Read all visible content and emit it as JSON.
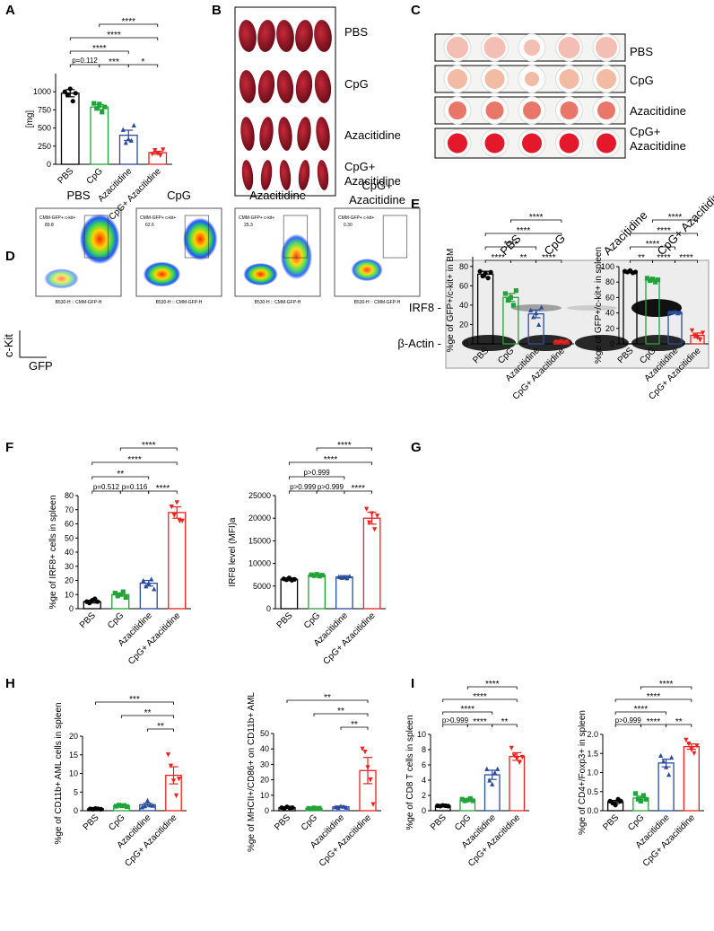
{
  "panel_labels": [
    "A",
    "B",
    "C",
    "D",
    "E",
    "F",
    "G",
    "H",
    "I"
  ],
  "spleen_photo": {
    "labels": [
      [
        "PBS"
      ],
      [
        "CpG"
      ],
      [
        "Azacitidine"
      ],
      [
        "CpG+",
        "Azacitidine"
      ]
    ]
  },
  "bone_marrow_photo": {
    "labels": [
      [
        "PBS"
      ],
      [
        "CpG"
      ],
      [
        "Azacitidine"
      ],
      [
        "CpG+",
        "Azacitidine"
      ]
    ]
  },
  "flow": {
    "titles": [
      [
        "PBS"
      ],
      [
        "CpG"
      ],
      [
        "Azacitidine"
      ],
      [
        "CpG+",
        "Azacitidine"
      ]
    ],
    "gate_label": "CMM-GFP+ c-kit+",
    "gate_values": [
      "89.8",
      "62.6",
      "25.3",
      "0.30"
    ],
    "x_channel": "B530-H :: CMM-GFP-H",
    "y_axis_label": "c-Kit",
    "x_axis_label": "GFP"
  },
  "western_blot": {
    "lanes": [
      "PBS",
      "CpG",
      "Azacitidine",
      "CpG+ Azacitidine"
    ],
    "rows": [
      "IRF8 -",
      "β-Actin -"
    ]
  },
  "chart_data": [
    {
      "type": "bar",
      "y_label": "[mg]",
      "categories": [
        "PBS",
        "CpG",
        "Azacitidine",
        "CpG+ Azacitidine"
      ],
      "colors": [
        "#000000",
        "#22a33a",
        "#2b4c9b",
        "#e8231f"
      ],
      "values": [
        980,
        790,
        400,
        160
      ],
      "errors": [
        50,
        35,
        70,
        20
      ],
      "points": [
        [
          1000,
          960,
          1040,
          870,
          980
        ],
        [
          840,
          770,
          830,
          720,
          790
        ],
        [
          480,
          300,
          350,
          330,
          540
        ],
        [
          140,
          190,
          150,
          120,
          200
        ]
      ],
      "ylim": [
        0,
        1250
      ],
      "yticks": [
        0,
        250,
        500,
        750,
        1000
      ],
      "annotations": [
        "****",
        "****",
        "****",
        "p=0.112",
        "***",
        "*"
      ]
    },
    {
      "type": "bar",
      "y_label": "%ge of GFP+/c-kit+ in BM",
      "categories": [
        "PBS",
        "CpG",
        "Azacitidine",
        "CpG+ Azacitidine"
      ],
      "colors": [
        "#000000",
        "#22a33a",
        "#2b4c9b",
        "#e8231f"
      ],
      "values": [
        72,
        48,
        31,
        2
      ],
      "errors": [
        3,
        4,
        4,
        0.5
      ],
      "points": [
        [
          75,
          70,
          73,
          68,
          74
        ],
        [
          52,
          45,
          48,
          40,
          55
        ],
        [
          35,
          28,
          32,
          20,
          38
        ],
        [
          2,
          1.5,
          2.5,
          1,
          2
        ]
      ],
      "ylim": [
        0,
        90
      ],
      "yticks": [
        0,
        20,
        40,
        60,
        80
      ],
      "annotations": [
        "****",
        "****",
        "****",
        "****",
        "**",
        "****"
      ]
    },
    {
      "type": "bar",
      "y_label": "%ge of GFP+/c-kit+ in spleen",
      "categories": [
        "PBS",
        "CpG",
        "Azacitidine",
        "CpG+ Azacitidine"
      ],
      "colors": [
        "#000000",
        "#22a33a",
        "#2b4c9b",
        "#e8231f"
      ],
      "values": [
        93,
        83,
        41,
        11
      ],
      "errors": [
        1,
        2,
        1,
        3
      ],
      "points": [
        [
          94,
          93,
          95,
          92,
          93
        ],
        [
          85,
          82,
          84,
          80,
          83
        ],
        [
          41,
          41,
          42,
          40,
          41
        ],
        [
          17,
          10,
          8,
          5,
          14
        ]
      ],
      "ylim": [
        0,
        100
      ],
      "yticks": [
        0,
        20,
        40,
        60,
        80,
        100
      ],
      "annotations": [
        "****",
        "****",
        "****",
        "**",
        "****",
        "****"
      ]
    },
    {
      "type": "bar",
      "y_label": "%ge of IRF8+ cells in spleen",
      "categories": [
        "PBS",
        "CpG",
        "Azacitidine",
        "CpG+ Azacitidine"
      ],
      "colors": [
        "#000000",
        "#22a33a",
        "#2b4c9b",
        "#e8231f"
      ],
      "values": [
        5,
        10,
        18,
        68
      ],
      "errors": [
        1,
        1,
        2,
        4
      ],
      "points": [
        [
          5,
          4,
          6,
          7,
          5
        ],
        [
          11,
          9,
          10,
          12,
          8
        ],
        [
          20,
          16,
          18,
          21,
          14
        ],
        [
          72,
          66,
          75,
          62,
          62
        ]
      ],
      "ylim": [
        0,
        80
      ],
      "yticks": [
        0,
        10,
        20,
        30,
        40,
        50,
        60,
        70,
        80
      ],
      "annotations": [
        "****",
        "****",
        "**",
        "p=0.512",
        "p=0.116",
        "****"
      ]
    },
    {
      "type": "bar",
      "y_label": "IRF8 level (MFI)a",
      "categories": [
        "PBS",
        "CpG",
        "Azacitidine",
        "CpG+ Azacitidine"
      ],
      "colors": [
        "#000000",
        "#22a33a",
        "#2b4c9b",
        "#e8231f"
      ],
      "values": [
        6500,
        7400,
        7000,
        20000
      ],
      "errors": [
        300,
        300,
        300,
        1300
      ],
      "points": [
        [
          6600,
          6400,
          6800,
          6300,
          6500
        ],
        [
          7500,
          7300,
          7600,
          7200,
          7400
        ],
        [
          7100,
          6900,
          7000,
          6800,
          7200
        ],
        [
          22000,
          19000,
          21000,
          17500,
          20500
        ]
      ],
      "ylim": [
        0,
        25000
      ],
      "yticks": [
        0,
        5000,
        10000,
        15000,
        20000,
        25000
      ],
      "annotations": [
        "****",
        "****",
        "p>0.999",
        "p>0.999",
        "p>0.999",
        "****"
      ]
    },
    {
      "type": "bar",
      "y_label": "%ge of CD11b+ AML cells in spleen",
      "categories": [
        "PBS",
        "CpG",
        "Azacitidine",
        "CpG+ Azacitidine"
      ],
      "colors": [
        "#000000",
        "#22a33a",
        "#2b4c9b",
        "#e8231f"
      ],
      "values": [
        0.5,
        1.3,
        1.6,
        9.5
      ],
      "errors": [
        0.1,
        0.2,
        0.4,
        2.3
      ],
      "points": [
        [
          0.5,
          0.4,
          0.6,
          0.5,
          0.4
        ],
        [
          1.2,
          1.5,
          1.3,
          1.4,
          1.1
        ],
        [
          1.0,
          1.3,
          2.8,
          1.5,
          1.4
        ],
        [
          15,
          12,
          8,
          4,
          8.5
        ]
      ],
      "ylim": [
        0,
        20
      ],
      "yticks": [
        0,
        5,
        10,
        15,
        20
      ],
      "annotations": [
        "***",
        "**",
        "**"
      ]
    },
    {
      "type": "bar",
      "y_label": "%ge of MHCII+/CD86+ on CD11b+ AML",
      "categories": [
        "PBS",
        "CpG",
        "Azacitidine",
        "CpG+ Azacitidine"
      ],
      "colors": [
        "#000000",
        "#22a33a",
        "#2b4c9b",
        "#e8231f"
      ],
      "values": [
        2,
        1.5,
        2.5,
        26
      ],
      "errors": [
        0.4,
        0.3,
        0.5,
        8.5
      ],
      "points": [
        [
          2,
          1.5,
          2.5,
          1.8,
          2
        ],
        [
          1.5,
          1.2,
          1.8,
          1.3,
          1.6
        ],
        [
          2.5,
          2,
          3,
          2.8,
          2.2
        ],
        [
          40,
          38,
          28,
          20,
          4
        ]
      ],
      "ylim": [
        0,
        50
      ],
      "yticks": [
        0,
        10,
        20,
        30,
        40,
        50
      ],
      "annotations": [
        "**",
        "**",
        "**"
      ]
    },
    {
      "type": "bar",
      "y_label": "%ge of CD8 T cells in spleen",
      "categories": [
        "PBS",
        "CpG",
        "Azacitidine",
        "CpG+ Azacitidine"
      ],
      "colors": [
        "#000000",
        "#22a33a",
        "#2b4c9b",
        "#e8231f"
      ],
      "values": [
        0.65,
        1.4,
        4.7,
        7.1
      ],
      "errors": [
        0.05,
        0.15,
        0.6,
        0.5
      ],
      "points": [
        [
          0.65,
          0.6,
          0.7,
          0.65,
          0.6
        ],
        [
          1.5,
          1.3,
          1.4,
          1.6,
          1.3
        ],
        [
          5.5,
          4.0,
          3.5,
          5,
          5.5
        ],
        [
          8.2,
          7.2,
          6.8,
          6.3,
          7.0
        ]
      ],
      "ylim": [
        0,
        10
      ],
      "yticks": [
        0,
        2,
        4,
        6,
        8,
        10
      ],
      "annotations": [
        "****",
        "****",
        "****",
        "p>0.999",
        "****",
        "**"
      ]
    },
    {
      "type": "bar",
      "y_label": "%ge of CD4+/Foxp3+ in spleen",
      "categories": [
        "PBS",
        "CpG",
        "Azacitidine",
        "CpG+ Azacitidine"
      ],
      "colors": [
        "#000000",
        "#22a33a",
        "#2b4c9b",
        "#e8231f"
      ],
      "values": [
        0.23,
        0.33,
        1.25,
        1.68
      ],
      "errors": [
        0.04,
        0.05,
        0.1,
        0.07
      ],
      "points": [
        [
          0.25,
          0.2,
          0.15,
          0.3,
          0.25
        ],
        [
          0.45,
          0.3,
          0.25,
          0.4,
          0.3
        ],
        [
          1.45,
          1.3,
          1.15,
          0.95,
          1.4
        ],
        [
          1.85,
          1.75,
          1.6,
          1.5,
          1.7
        ]
      ],
      "ylim": [
        0,
        2
      ],
      "yticks": [
        {
          "value": 0,
          "label": "0.0"
        },
        0.5,
        {
          "value": 1,
          "label": "1.0"
        },
        1.5,
        {
          "value": 2,
          "label": "2.0"
        }
      ],
      "annotations": [
        "****",
        "****",
        "****",
        "p>0.999",
        "****",
        "**"
      ]
    }
  ]
}
